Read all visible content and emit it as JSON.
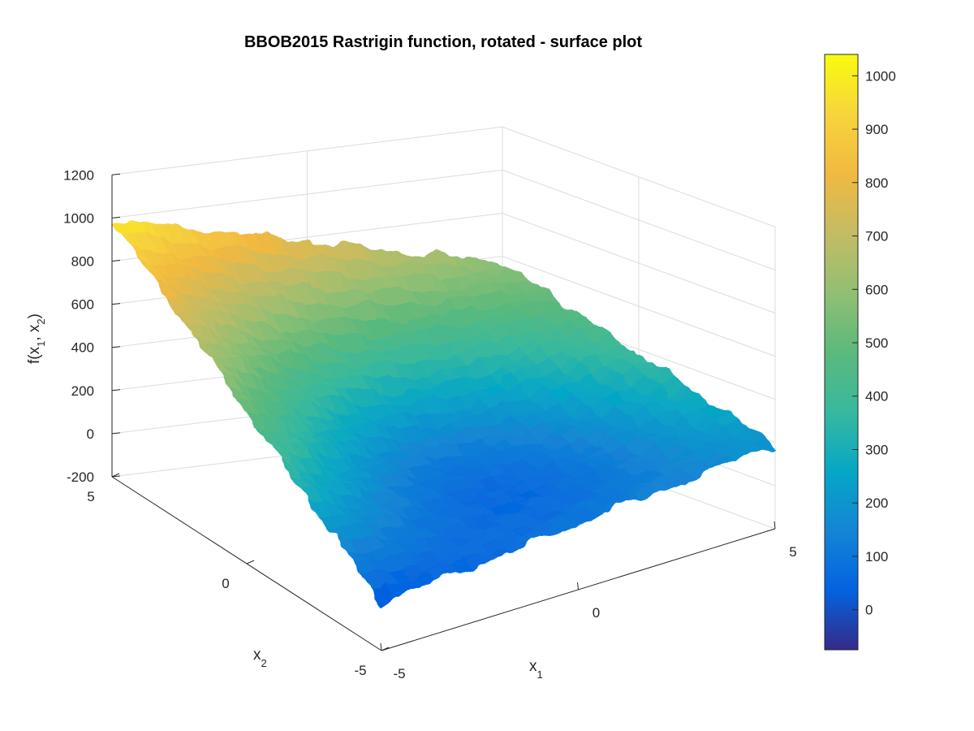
{
  "chart_data": {
    "type": "surface",
    "title": "BBOB2015 Rastrigin function, rotated - surface plot",
    "x_label": {
      "base": "x",
      "sub": "1"
    },
    "y_label": {
      "base": "x",
      "sub": "2"
    },
    "z_label": {
      "prefix": "f(x",
      "sub1": "1",
      "mid": ", x",
      "sub2": "2",
      "suffix": ")"
    },
    "x_range": [
      -5,
      5
    ],
    "y_range": [
      -5,
      5
    ],
    "z_range": [
      -200,
      1200
    ],
    "x_ticks": [
      "-5",
      "0",
      "5"
    ],
    "y_ticks": [
      "-5",
      "0",
      "5"
    ],
    "z_ticks": [
      "-200",
      "0",
      "200",
      "400",
      "600",
      "800",
      "1000",
      "1200"
    ],
    "grid": true,
    "surface_corners": {
      "x1_-5_x2_5": 990,
      "x1_5_x2_5": 570,
      "x1_5_x2_-5": 190,
      "x1_-5_x2_-5": 20
    },
    "surface_minimum_approx": -60,
    "colormap": "parula",
    "colorbar": {
      "range": [
        -75,
        1040
      ],
      "ticks": [
        "0",
        "100",
        "200",
        "300",
        "400",
        "500",
        "600",
        "700",
        "800",
        "900",
        "1000"
      ]
    }
  }
}
